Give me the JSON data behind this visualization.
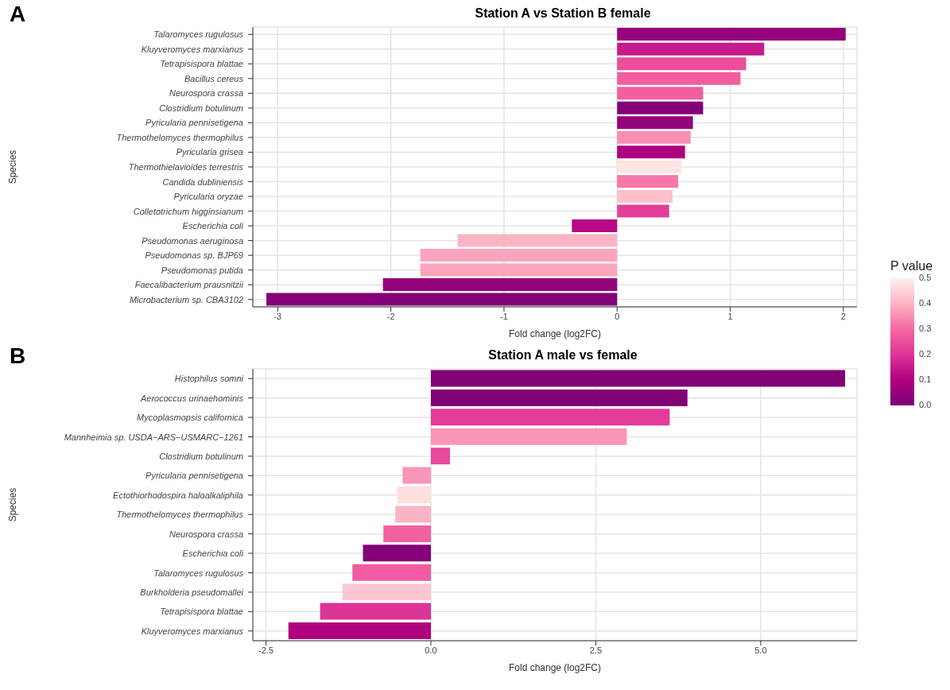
{
  "chart_data": [
    {
      "type": "bar",
      "orientation": "horizontal",
      "title": "Station A vs Station B female",
      "xlabel": "Fold change (log2FC)",
      "ylabel": "Species",
      "annotations": [
        "A"
      ],
      "categories": [
        "Talaromyces rugulosus",
        "Kluyveromyces marxianus",
        "Tetrapisispora blattae",
        "Bacillus cereus",
        "Neurospora crassa",
        "Clostridium botulinum",
        "Pyricularia pennisetigena",
        "Thermothelomyces thermophilus",
        "Pyricularia grisea",
        "Thermothielavioides terrestris",
        "Candida dubliniensis",
        "Pyricularia oryzae",
        "Colletotrichum higginsianum",
        "Escherichia coli",
        "Pseudomonas aeruginosa",
        "Pseudomonas sp. BJP69",
        "Pseudomonas putida",
        "Faecalibacterium prausnitzii",
        "Microbacterium sp. CBA3102"
      ],
      "values": [
        2.02,
        1.3,
        1.14,
        1.09,
        0.76,
        0.76,
        0.67,
        0.65,
        0.6,
        0.57,
        0.54,
        0.49,
        0.46,
        -0.4,
        -1.41,
        -1.74,
        -1.74,
        -2.07,
        -3.1
      ],
      "cvalues": [
        0.05,
        0.15,
        0.25,
        0.28,
        0.28,
        0.02,
        0.05,
        0.35,
        0.1,
        0.48,
        0.32,
        0.42,
        0.22,
        0.12,
        0.4,
        0.38,
        0.38,
        0.05,
        0.02
      ],
      "clabel": "P value",
      "clim": [
        0,
        0.5
      ],
      "cticks": [
        {
          "value": 0,
          "label": "0.0"
        },
        {
          "value": 0.1,
          "label": "0.1"
        },
        {
          "value": 0.2,
          "label": "0.2"
        },
        {
          "value": 0.3,
          "label": "0.3"
        },
        {
          "value": 0.4,
          "label": "0.4"
        },
        {
          "value": 0.5,
          "label": "0.5"
        }
      ],
      "xlim": [
        -3.22,
        2.12
      ],
      "xticks": [
        -3,
        -2,
        -1,
        0,
        1,
        2
      ],
      "grid": true
    },
    {
      "type": "bar",
      "orientation": "horizontal",
      "title": "Station A male vs female",
      "xlabel": "Fold change (log2FC)",
      "ylabel": "Species",
      "annotations": [
        "B"
      ],
      "categories": [
        "Histophilus somni",
        "Aerococcus urinaehominis",
        "Mycoplasmopsis californica",
        "Mannheimia sp. USDA−ARS−USMARC−1261",
        "Clostridium botulinum",
        "Pyricularia pennisetigena",
        "Ectothiorhodospira haloalkaliphila",
        "Thermothelomyces thermophilus",
        "Neurospora crassa",
        "Escherichia coli",
        "Talaromyces rugulosus",
        "Burkholderia pseudomallei",
        "Tetrapisispora blattae",
        "Kluyveromyces marxianus"
      ],
      "values": [
        6.28,
        3.89,
        3.62,
        2.97,
        0.29,
        -0.43,
        -0.51,
        -0.54,
        -0.72,
        -1.03,
        -1.19,
        -1.34,
        -1.68,
        -2.16
      ],
      "colors": [
        "#810177",
        "#810177",
        "#e23b99",
        "#f996b9",
        "#e84a9c",
        "#f996b9",
        "#fee0de",
        "#fbb4c4",
        "#f261a0",
        "#84017a",
        "#f05c9f",
        "#fcc7d3",
        "#dd3497",
        "#ae017e"
      ],
      "xlim": [
        -2.7,
        6.46
      ],
      "xticks": [
        {
          "value": -2.5,
          "label": "-2.5"
        },
        {
          "value": 0,
          "label": "0.0"
        },
        {
          "value": 2.5,
          "label": "2.5"
        },
        {
          "value": 5,
          "label": "5.0"
        }
      ],
      "grid": true
    }
  ]
}
